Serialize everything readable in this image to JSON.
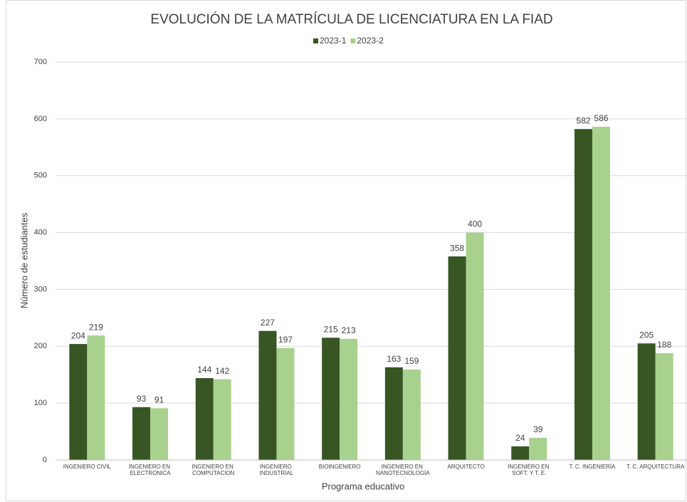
{
  "chart_data": {
    "type": "bar",
    "title": "EVOLUCIÓN DE LA MATRÍCULA DE LICENCIATURA EN LA FIAD",
    "x_label": "Programa educativo",
    "y_label": "Número de estudiantes",
    "categories": [
      "INGENIERO CIVIL",
      "INGENIERO EN\nELECTRONICA",
      "INGENIERO EN\nCOMPUTACION",
      "INGENIERO\nINDUSTRIAL",
      "BIOINGENIERO",
      "INGENIERO EN\nNANOTECNOLOGÍA",
      "ARQUITECTO",
      "INGENIERO EN\nSOFT. Y T. E.",
      "T. C. INGENIERÍA",
      "T. C. ARQUITECTURA"
    ],
    "series": [
      {
        "name": "2023-1",
        "color": "#375623",
        "values": [
          204,
          93,
          144,
          227,
          215,
          163,
          358,
          24,
          582,
          205
        ]
      },
      {
        "name": "2023-2",
        "color": "#a9d18e",
        "values": [
          219,
          91,
          142,
          197,
          213,
          159,
          400,
          39,
          586,
          188
        ]
      }
    ],
    "ylim": [
      0,
      700
    ],
    "yticks": [
      0,
      100,
      200,
      300,
      400,
      500,
      600,
      700
    ],
    "grid": true,
    "legend": "top"
  }
}
